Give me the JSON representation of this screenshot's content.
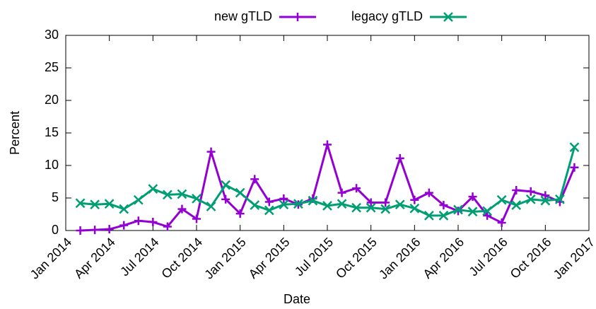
{
  "chart_data": {
    "type": "line",
    "xlabel": "Date",
    "ylabel": "Percent",
    "x": [
      "2014-02",
      "2014-03",
      "2014-04",
      "2014-05",
      "2014-06",
      "2014-07",
      "2014-08",
      "2014-09",
      "2014-10",
      "2014-11",
      "2014-12",
      "2015-01",
      "2015-02",
      "2015-03",
      "2015-04",
      "2015-05",
      "2015-06",
      "2015-07",
      "2015-08",
      "2015-09",
      "2015-10",
      "2015-11",
      "2015-12",
      "2016-01",
      "2016-02",
      "2016-03",
      "2016-04",
      "2016-05",
      "2016-06",
      "2016-07",
      "2016-08",
      "2016-09",
      "2016-10",
      "2016-11",
      "2016-12"
    ],
    "series": [
      {
        "name": "new gTLD",
        "color": "#9400d3",
        "marker": "plus",
        "values": [
          0,
          0.1,
          0.2,
          0.8,
          1.5,
          1.3,
          0.6,
          3.3,
          1.8,
          12.1,
          4.8,
          2.6,
          7.9,
          4.4,
          4.9,
          4.0,
          4.9,
          13.2,
          5.8,
          6.5,
          4.3,
          4.3,
          11.1,
          4.7,
          5.8,
          3.9,
          3.0,
          5.2,
          2.3,
          1.2,
          6.2,
          6.0,
          5.4,
          4.4,
          9.7
        ]
      },
      {
        "name": "legacy gTLD",
        "color": "#009e73",
        "marker": "cross",
        "values": [
          4.2,
          4.0,
          4.1,
          3.3,
          4.7,
          6.4,
          5.5,
          5.6,
          4.9,
          3.7,
          7.0,
          5.8,
          3.9,
          3.1,
          4.0,
          4.1,
          4.6,
          3.8,
          4.1,
          3.5,
          3.5,
          3.3,
          4.0,
          3.4,
          2.3,
          2.3,
          3.2,
          2.9,
          3.0,
          4.7,
          3.9,
          4.8,
          4.6,
          4.8,
          12.8
        ]
      }
    ],
    "xlim": [
      "2014-01",
      "2017-01"
    ],
    "xticks": [
      {
        "value": "2014-01",
        "label": "Jan 2014"
      },
      {
        "value": "2014-04",
        "label": "Apr 2014"
      },
      {
        "value": "2014-07",
        "label": "Jul 2014"
      },
      {
        "value": "2014-10",
        "label": "Oct 2014"
      },
      {
        "value": "2015-01",
        "label": "Jan 2015"
      },
      {
        "value": "2015-04",
        "label": "Apr 2015"
      },
      {
        "value": "2015-07",
        "label": "Jul 2015"
      },
      {
        "value": "2015-10",
        "label": "Oct 2015"
      },
      {
        "value": "2016-01",
        "label": "Jan 2016"
      },
      {
        "value": "2016-04",
        "label": "Apr 2016"
      },
      {
        "value": "2016-07",
        "label": "Jul 2016"
      },
      {
        "value": "2016-10",
        "label": "Oct 2016"
      },
      {
        "value": "2017-01",
        "label": "Jan 2017"
      }
    ],
    "ylim": [
      0,
      30
    ],
    "yticks": [
      0,
      5,
      10,
      15,
      20,
      25,
      30
    ],
    "legend": "top"
  }
}
